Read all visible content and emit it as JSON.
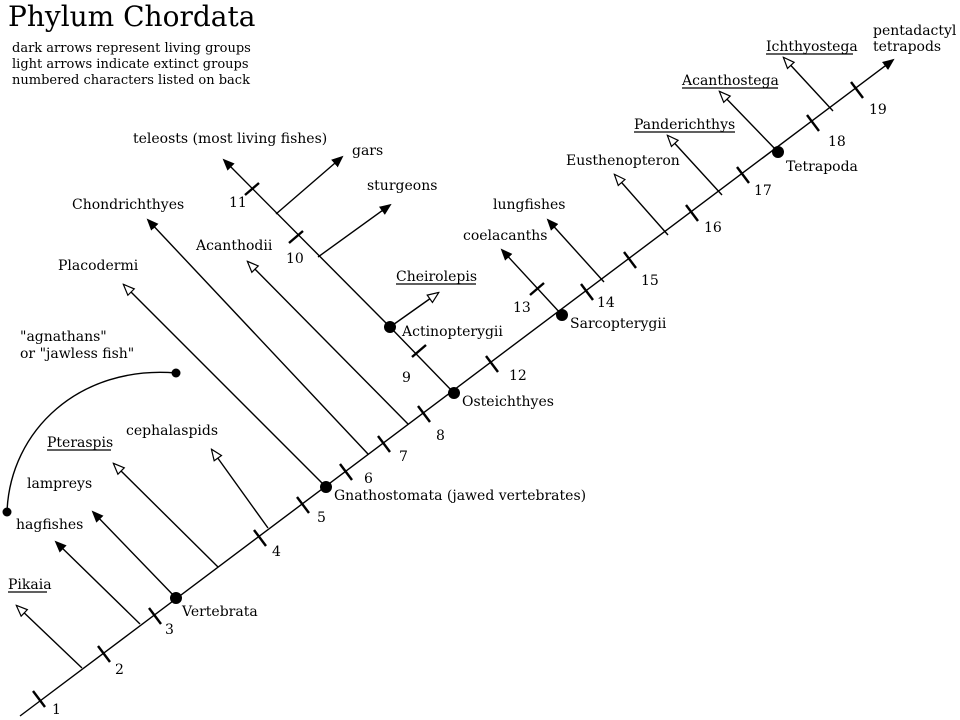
{
  "title": "Phylum Chordata",
  "legend": [
    "dark arrows represent living groups",
    "light arrows indicate extinct groups",
    "numbered characters listed on back"
  ],
  "taxa": {
    "pikaia": "Pikaia",
    "hagfishes": "hagfishes",
    "lampreys": "lampreys",
    "pteraspis": "Pteraspis",
    "cephalaspids": "cephalaspids",
    "agnathans_1": "\"agnathans\"",
    "agnathans_2": "or \"jawless fish\"",
    "placodermi": "Placodermi",
    "chondrichthyes": "Chondrichthyes",
    "acanthodii": "Acanthodii",
    "teleosts": "teleosts (most living fishes)",
    "gars": "gars",
    "sturgeons": "sturgeons",
    "cheirolepis": "Cheirolepis",
    "coelacanths": "coelacanths",
    "lungfishes": "lungfishes",
    "eusthenopteron": "Eusthenopteron",
    "panderichthys": "Panderichthys",
    "acanthostega": "Acanthostega",
    "ichthyostega": "Ichthyostega",
    "pentadactyl_1": "pentadactyl",
    "pentadactyl_2": "tetrapods"
  },
  "clades": {
    "vertebrata": "Vertebrata",
    "gnathostomata": "Gnathostomata (jawed vertebrates)",
    "osteichthyes": "Osteichthyes",
    "actinopterygii": "Actinopterygii",
    "sarcopterygii": "Sarcopterygii",
    "tetrapoda": "Tetrapoda"
  },
  "characters": [
    "1",
    "2",
    "3",
    "4",
    "5",
    "6",
    "7",
    "8",
    "9",
    "10",
    "11",
    "12",
    "13",
    "14",
    "15",
    "16",
    "17",
    "18",
    "19"
  ]
}
